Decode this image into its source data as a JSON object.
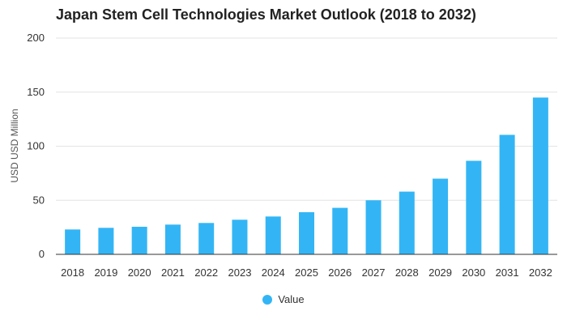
{
  "chart_data": {
    "type": "bar",
    "title": "Japan Stem Cell Technologies Market Outlook (2018 to 2032)",
    "xlabel": "",
    "ylabel": "USD USD Million",
    "ylim": [
      0,
      200
    ],
    "yticks": [
      0,
      50,
      100,
      150,
      200
    ],
    "grid": true,
    "legend_position": "bottom-center",
    "categories": [
      "2018",
      "2019",
      "2020",
      "2021",
      "2022",
      "2023",
      "2024",
      "2025",
      "2026",
      "2027",
      "2028",
      "2029",
      "2030",
      "2031",
      "2032"
    ],
    "series": [
      {
        "name": "Value",
        "color": "#33b5f5",
        "values": [
          23,
          24.5,
          25.5,
          27.5,
          29,
          32,
          35,
          39,
          43,
          50,
          58,
          70,
          86.5,
          110.5,
          145
        ]
      }
    ]
  }
}
